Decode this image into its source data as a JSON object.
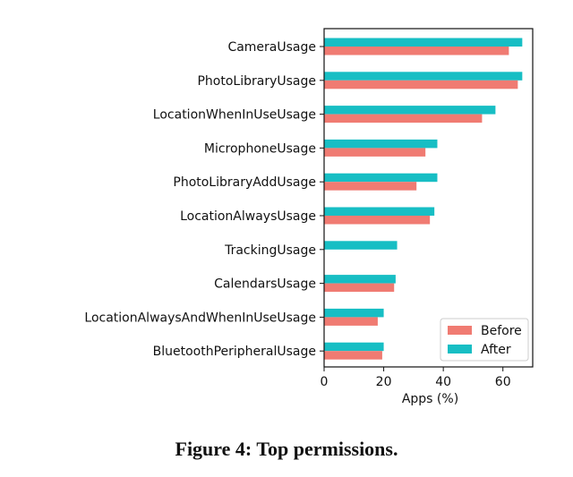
{
  "caption": "Figure 4: Top permissions.",
  "chart_data": {
    "type": "bar",
    "orientation": "horizontal",
    "categories": [
      "CameraUsage",
      "PhotoLibraryUsage",
      "LocationWhenInUseUsage",
      "MicrophoneUsage",
      "PhotoLibraryAddUsage",
      "LocationAlwaysUsage",
      "TrackingUsage",
      "CalendarsUsage",
      "LocationAlwaysAndWhenInUseUsage",
      "BluetoothPeripheralUsage"
    ],
    "series": [
      {
        "name": "Before",
        "color": "#f07b72",
        "values": [
          62,
          65,
          53,
          34,
          31,
          35.5,
          0,
          23.5,
          18,
          19.5
        ]
      },
      {
        "name": "After",
        "color": "#17bec4",
        "values": [
          66.5,
          66.5,
          57.5,
          38,
          38,
          37,
          24.5,
          24,
          20,
          20
        ]
      }
    ],
    "xlabel": "Apps (%)",
    "ylabel": "",
    "xlim": [
      0,
      70
    ],
    "xticks": [
      0,
      20,
      40,
      60
    ],
    "legend": "bottom-right",
    "grid": false
  }
}
